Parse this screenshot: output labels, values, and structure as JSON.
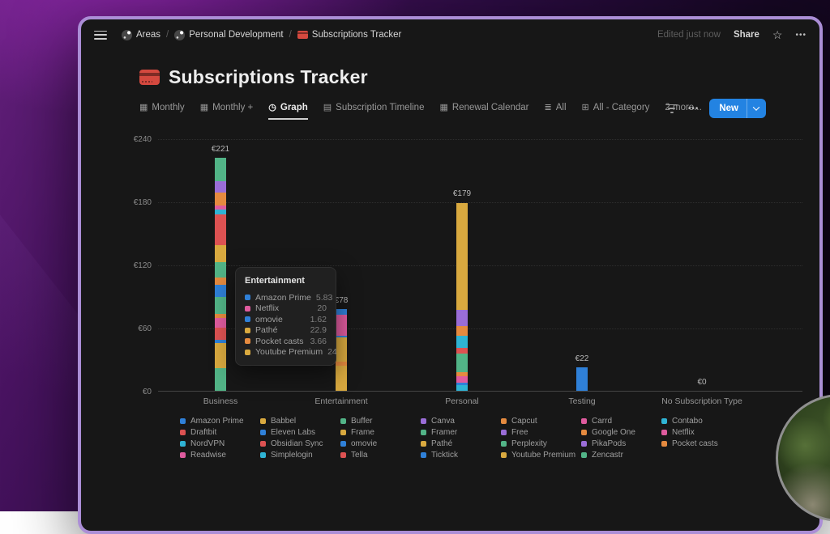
{
  "window": {
    "topbar": {
      "breadcrumbs": [
        {
          "label": "Areas",
          "icon": "workspace"
        },
        {
          "label": "Personal Development",
          "icon": "workspace"
        },
        {
          "label": "Subscriptions Tracker",
          "icon": "credit-card"
        }
      ],
      "edited": "Edited just now",
      "share_label": "Share"
    },
    "page": {
      "title": "Subscriptions Tracker",
      "tabs": [
        {
          "label": "Monthly",
          "icon": "calendar",
          "active": false
        },
        {
          "label": "Monthly +",
          "icon": "calendar",
          "active": false
        },
        {
          "label": "Graph",
          "icon": "clock",
          "active": true
        },
        {
          "label": "Subscription Timeline",
          "icon": "timeline",
          "active": false
        },
        {
          "label": "Renewal Calendar",
          "icon": "calendar",
          "active": false
        },
        {
          "label": "All",
          "icon": "table",
          "active": false
        },
        {
          "label": "All - Category",
          "icon": "board",
          "active": false
        },
        {
          "label": "2 more...",
          "icon": null,
          "active": false
        }
      ],
      "new_button": "New"
    }
  },
  "palette": {
    "blue": "#2f80d8",
    "yellow": "#d9a93f",
    "green": "#52b487",
    "purple": "#9a6dd7",
    "orange": "#e58a3f",
    "pink": "#df5b9e",
    "cyan": "#2fb3d4",
    "red": "#dd5252",
    "accent_blue": "#2383e2"
  },
  "chart_data": {
    "type": "bar",
    "stacked": true,
    "currency": "€",
    "ylim": [
      0,
      240
    ],
    "yticks": [
      240,
      180,
      120,
      60,
      0
    ],
    "grid": "dotted-horizontal",
    "legend_position": "bottom",
    "categories": [
      "Business",
      "Entertainment",
      "Personal",
      "Testing",
      "No Subscription Type"
    ],
    "bars": [
      {
        "category": "Business",
        "total": 221,
        "total_label": "€221",
        "segments_top_to_bottom": [
          {
            "color": "green",
            "value": 22.3
          },
          {
            "color": "purple",
            "value": 10.8
          },
          {
            "color": "orange",
            "value": 12.3
          },
          {
            "color": "pink",
            "value": 3.8
          },
          {
            "color": "cyan",
            "value": 4.6
          },
          {
            "color": "red",
            "value": 29.2
          },
          {
            "color": "yellow",
            "value": 16.2
          },
          {
            "color": "green",
            "value": 14.6
          },
          {
            "color": "orange",
            "value": 6.9
          },
          {
            "color": "blue",
            "value": 11.5
          },
          {
            "color": "green",
            "value": 16.2
          },
          {
            "color": "orange",
            "value": 3.8
          },
          {
            "color": "pink",
            "value": 9.2
          },
          {
            "color": "red",
            "value": 11.5
          },
          {
            "color": "blue",
            "value": 3.1
          },
          {
            "color": "yellow",
            "value": 23.8
          },
          {
            "color": "green",
            "value": 21.5
          }
        ]
      },
      {
        "category": "Entertainment",
        "total": 78,
        "total_label": "€78",
        "segments_top_to_bottom": [
          {
            "label": "Amazon Prime",
            "color": "blue",
            "value": 5.83
          },
          {
            "label": "Netflix",
            "color": "pink",
            "value": 20
          },
          {
            "label": "omovie",
            "color": "blue",
            "value": 1.62
          },
          {
            "label": "Pathé",
            "color": "yellow",
            "value": 22.9
          },
          {
            "label": "Pocket casts",
            "color": "orange",
            "value": 3.66
          },
          {
            "label": "Youtube Premium",
            "color": "yellow",
            "value": 24
          }
        ]
      },
      {
        "category": "Personal",
        "total": 179,
        "total_label": "€179",
        "segments_top_to_bottom": [
          {
            "color": "yellow",
            "value": 102
          },
          {
            "color": "purple",
            "value": 15.4
          },
          {
            "color": "orange",
            "value": 9.2
          },
          {
            "color": "cyan",
            "value": 11.5
          },
          {
            "color": "red",
            "value": 5.4
          },
          {
            "color": "green",
            "value": 17.7
          },
          {
            "color": "orange",
            "value": 3.8
          },
          {
            "color": "pink",
            "value": 6.2
          },
          {
            "color": "blue",
            "value": 2.3
          },
          {
            "color": "cyan",
            "value": 5.4
          }
        ]
      },
      {
        "category": "Testing",
        "total": 22,
        "total_label": "€22",
        "segments_top_to_bottom": [
          {
            "color": "blue",
            "value": 22
          }
        ]
      },
      {
        "category": "No Subscription Type",
        "total": 0,
        "total_label": "€0",
        "segments_top_to_bottom": []
      }
    ],
    "legend": [
      {
        "label": "Amazon Prime",
        "color": "blue"
      },
      {
        "label": "Babbel",
        "color": "yellow"
      },
      {
        "label": "Buffer",
        "color": "green"
      },
      {
        "label": "Canva",
        "color": "purple"
      },
      {
        "label": "Capcut",
        "color": "orange"
      },
      {
        "label": "Carrd",
        "color": "pink"
      },
      {
        "label": "Contabo",
        "color": "cyan"
      },
      {
        "label": "Draftbit",
        "color": "red"
      },
      {
        "label": "Eleven Labs",
        "color": "blue"
      },
      {
        "label": "Frame",
        "color": "yellow"
      },
      {
        "label": "Framer",
        "color": "green"
      },
      {
        "label": "Free",
        "color": "purple"
      },
      {
        "label": "Google One",
        "color": "orange"
      },
      {
        "label": "Netflix",
        "color": "pink"
      },
      {
        "label": "NordVPN",
        "color": "cyan"
      },
      {
        "label": "Obsidian Sync",
        "color": "red"
      },
      {
        "label": "omovie",
        "color": "blue"
      },
      {
        "label": "Pathé",
        "color": "yellow"
      },
      {
        "label": "Perplexity",
        "color": "green"
      },
      {
        "label": "PikaPods",
        "color": "purple"
      },
      {
        "label": "Pocket casts",
        "color": "orange"
      },
      {
        "label": "Readwise",
        "color": "pink"
      },
      {
        "label": "Simplelogin",
        "color": "cyan"
      },
      {
        "label": "Tella",
        "color": "red"
      },
      {
        "label": "Ticktick",
        "color": "blue"
      },
      {
        "label": "Youtube Premium",
        "color": "yellow"
      },
      {
        "label": "Zencastr",
        "color": "green"
      }
    ]
  },
  "tooltip": {
    "title": "Entertainment",
    "rows": [
      {
        "label": "Amazon Prime",
        "color": "blue",
        "value": "5.83"
      },
      {
        "label": "Netflix",
        "color": "pink",
        "value": "20"
      },
      {
        "label": "omovie",
        "color": "blue",
        "value": "1.62"
      },
      {
        "label": "Pathé",
        "color": "yellow",
        "value": "22.9"
      },
      {
        "label": "Pocket casts",
        "color": "orange",
        "value": "3.66"
      },
      {
        "label": "Youtube Premium",
        "color": "yellow",
        "value": "24"
      }
    ]
  }
}
